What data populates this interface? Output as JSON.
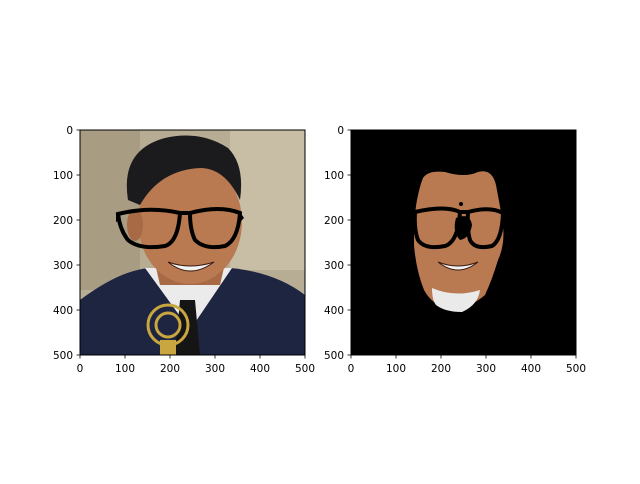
{
  "chart_data": [
    {
      "type": "image",
      "title": "",
      "xlabel": "",
      "ylabel": "",
      "xlim": [
        0,
        500
      ],
      "ylim": [
        500,
        0
      ],
      "xticks": [
        0,
        100,
        200,
        300,
        400,
        500
      ],
      "yticks": [
        0,
        100,
        200,
        300,
        400,
        500
      ],
      "image_description": "Photo of a smiling man with dark hair wearing black-framed glasses, dark suit and white shirt, holding a gold trophy, on a beige background"
    },
    {
      "type": "image",
      "title": "",
      "xlabel": "",
      "ylabel": "",
      "xlim": [
        0,
        500
      ],
      "ylim": [
        500,
        0
      ],
      "xticks": [
        0,
        100,
        200,
        300,
        400,
        500
      ],
      "yticks": [
        0,
        100,
        200,
        300,
        400,
        500
      ],
      "image_description": "Segmented face region of the same man with black-framed glasses on a black background"
    }
  ],
  "colors": {
    "background": "#ffffff",
    "axes": "#000000",
    "mask_background": "#000000",
    "photo_background": "#b8ad94",
    "skin": "#b97a52",
    "hair": "#1b1a1d",
    "suit": "#1d2540",
    "shirt": "#eeeeee",
    "trophy": "#c9a640"
  }
}
